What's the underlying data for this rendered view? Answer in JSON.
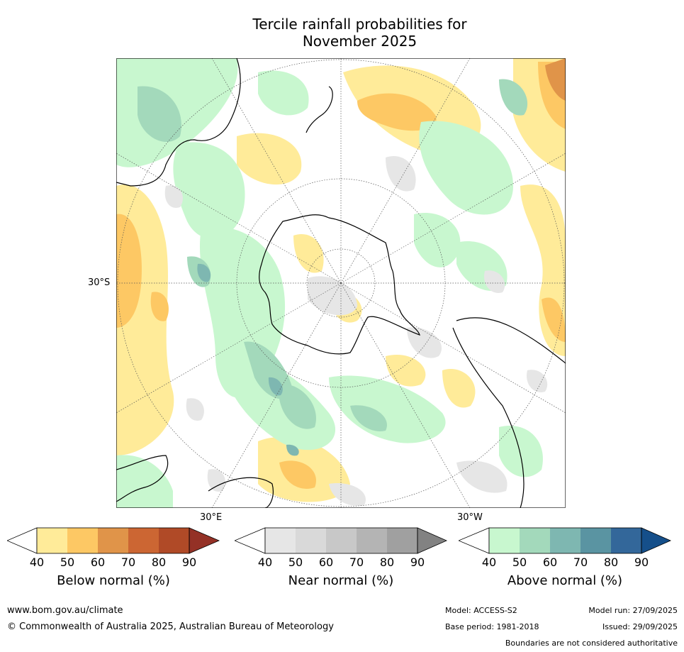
{
  "title": {
    "line1": "Tercile rainfall probabilities for",
    "line2": "November 2025"
  },
  "map": {
    "projection": "south-polar-stereographic",
    "labels": {
      "lat_30s": "30°S",
      "lon_30e": "30°E",
      "lon_30w": "30°W"
    }
  },
  "colorbars": [
    {
      "id": "below",
      "title": "Below normal (%)",
      "ticks": [
        "40",
        "50",
        "60",
        "70",
        "80",
        "90"
      ],
      "colors": [
        "#ffffff",
        "#ffeb99",
        "#fdc864",
        "#e09449",
        "#cc6633",
        "#b04a27",
        "#943126"
      ]
    },
    {
      "id": "near",
      "title": "Near normal (%)",
      "ticks": [
        "40",
        "50",
        "60",
        "70",
        "80",
        "90"
      ],
      "colors": [
        "#ffffff",
        "#e6e6e6",
        "#d9d9d9",
        "#c8c8c8",
        "#b4b4b4",
        "#a0a0a0",
        "#828282"
      ]
    },
    {
      "id": "above",
      "title": "Above normal (%)",
      "ticks": [
        "40",
        "50",
        "60",
        "70",
        "80",
        "90"
      ],
      "colors": [
        "#ffffff",
        "#c8f7cf",
        "#a3d9bb",
        "#7eb7b1",
        "#5a94a2",
        "#33679a",
        "#154f8a"
      ]
    }
  ],
  "footer": {
    "website": "www.bom.gov.au/climate",
    "copyright": "© Commonwealth of Australia 2025, Australian Bureau of Meteorology",
    "model": "Model: ACCESS-S2",
    "base_period": "Base period: 1981-2018",
    "model_run": "Model run: 27/09/2025",
    "issued": "Issued: 29/09/2025",
    "disclaimer": "Boundaries are not considered authoritative"
  }
}
